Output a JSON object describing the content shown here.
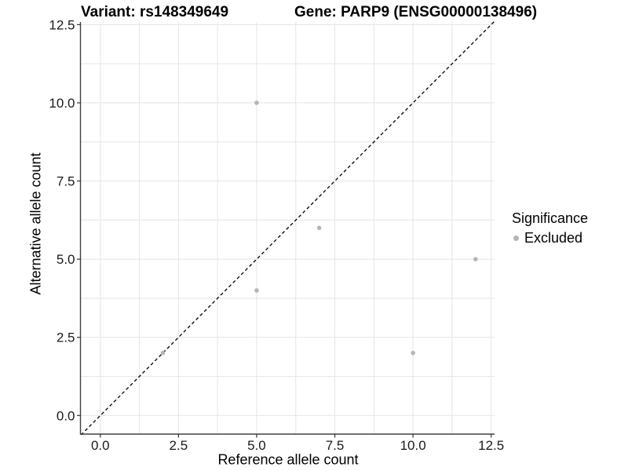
{
  "chart_data": {
    "type": "scatter",
    "titles": {
      "left": "Variant: rs148349649",
      "right": "Gene: PARP9 (ENSG00000138496)"
    },
    "xlabel": "Reference allele count",
    "ylabel": "Alternative allele count",
    "x_ticks": [
      0,
      2.5,
      5,
      7.5,
      10,
      12.5
    ],
    "x_tick_labels": [
      "0.0",
      "2.5",
      "5.0",
      "7.5",
      "10.0",
      "12.5"
    ],
    "y_ticks": [
      0,
      2.5,
      5,
      7.5,
      10,
      12.5
    ],
    "y_tick_labels": [
      "0.0",
      "2.5",
      "5.0",
      "7.5",
      "10.0",
      "12.5"
    ],
    "xlim": [
      -0.64,
      12.6
    ],
    "ylim": [
      -0.6,
      12.65
    ],
    "grid": "major+minor",
    "identity_line": {
      "equation": "y = x",
      "style": "dashed",
      "color": "#000000"
    },
    "series": [
      {
        "name": "Excluded",
        "color": "#b5b5b5",
        "points": [
          {
            "x": 2,
            "y": 2
          },
          {
            "x": 5,
            "y": 4
          },
          {
            "x": 5,
            "y": 10
          },
          {
            "x": 7,
            "y": 6
          },
          {
            "x": 10,
            "y": 2
          },
          {
            "x": 12,
            "y": 5
          }
        ]
      }
    ],
    "legend": {
      "title": "Significance",
      "position": "right",
      "entries": [
        {
          "label": "Excluded",
          "color": "#b5b5b5"
        }
      ]
    },
    "colors": {
      "grid": "#e7e7e7",
      "axis_line": "#404040",
      "tick_mark": "#333333",
      "tick_text": "#1a1a1a",
      "background": "#ffffff"
    }
  }
}
